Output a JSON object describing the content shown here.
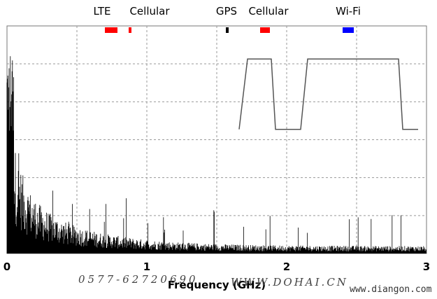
{
  "chart_data": {
    "type": "line",
    "title": "",
    "xlabel": "Frequency (GHz)",
    "ylabel": "",
    "xlim": [
      0,
      3
    ],
    "x_ticks": [
      0,
      1,
      2,
      3
    ],
    "grid": true,
    "bands": [
      {
        "name": "LTE",
        "start": 0.7,
        "end": 0.79,
        "color": "#ff0000"
      },
      {
        "name": "Cellular",
        "start": 0.87,
        "end": 0.89,
        "color": "#ff0000"
      },
      {
        "name": "GPS",
        "start": 1.565,
        "end": 1.585,
        "color": "#000000"
      },
      {
        "name": "Cellular",
        "start": 1.81,
        "end": 1.88,
        "color": "#ff0000"
      },
      {
        "name": "Wi-Fi",
        "start": 2.4,
        "end": 2.48,
        "color": "#0000ff"
      }
    ],
    "band_labels": [
      {
        "text": "LTE",
        "at": 0.68
      },
      {
        "text": "Cellular",
        "at": 1.02
      },
      {
        "text": "GPS",
        "at": 1.57
      },
      {
        "text": "Cellular",
        "at": 1.87
      },
      {
        "text": "Wi-Fi",
        "at": 2.44
      }
    ],
    "filter_response": {
      "x": [
        1.66,
        1.72,
        1.89,
        1.92,
        2.1,
        2.15,
        2.8,
        2.83,
        2.94
      ],
      "y": [
        0.3,
        0.47,
        0.47,
        0.3,
        0.3,
        0.47,
        0.47,
        0.3,
        0.3
      ],
      "ylim": [
        0,
        0.55
      ]
    }
  },
  "watermarks": {
    "left": "0577-62720690",
    "middle": "WWW.DOHAI.CN",
    "right": "www.diangon.com"
  }
}
